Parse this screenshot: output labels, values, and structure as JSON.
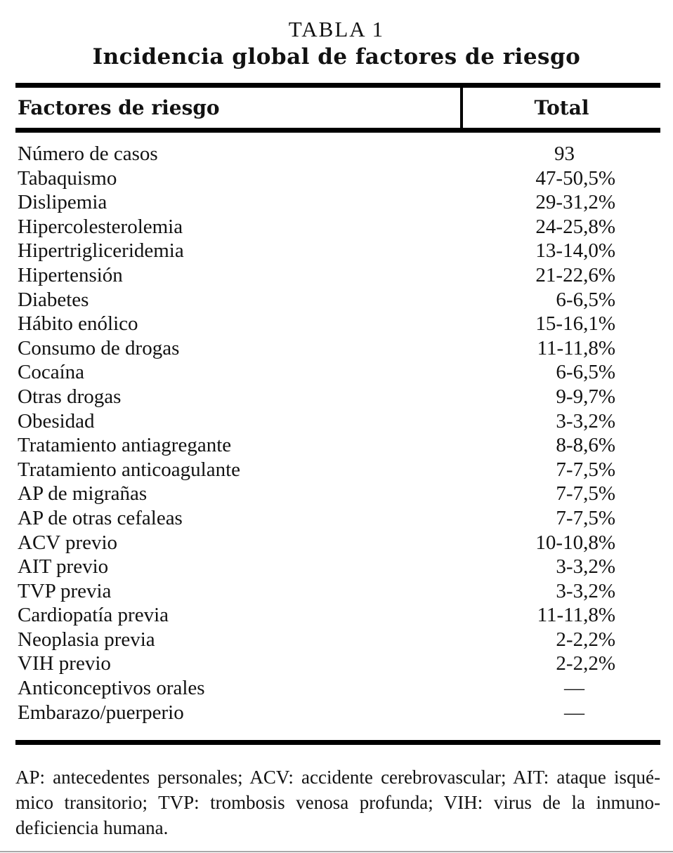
{
  "table_number": "TABLA 1",
  "table_title": "Incidencia global de factores de riesgo",
  "columns": {
    "factor": "Factores de riesgo",
    "total": "Total"
  },
  "rows": [
    {
      "label": "Número de casos",
      "value": "93"
    },
    {
      "label": "Tabaquismo",
      "value": "47-50,5%"
    },
    {
      "label": "Dislipemia",
      "value": "29-31,2%"
    },
    {
      "label": "Hipercolesterolemia",
      "value": "24-25,8%"
    },
    {
      "label": "Hipertrigliceridemia",
      "value": "13-14,0%"
    },
    {
      "label": "Hipertensión",
      "value": "21-22,6%"
    },
    {
      "label": "Diabetes",
      "value": "6-6,5%"
    },
    {
      "label": "Hábito enólico",
      "value": "15-16,1%"
    },
    {
      "label": "Consumo de drogas",
      "value": "11-11,8%"
    },
    {
      "label": "Cocaína",
      "value": "6-6,5%"
    },
    {
      "label": "Otras drogas",
      "value": "9-9,7%"
    },
    {
      "label": "Obesidad",
      "value": "3-3,2%"
    },
    {
      "label": "Tratamiento antiagregante",
      "value": "8-8,6%"
    },
    {
      "label": "Tratamiento anticoagulante",
      "value": "7-7,5%"
    },
    {
      "label": "AP de migrañas",
      "value": "7-7,5%"
    },
    {
      "label": "AP de otras cefaleas",
      "value": "7-7,5%"
    },
    {
      "label": "ACV previo",
      "value": "10-10,8%"
    },
    {
      "label": "AIT previo",
      "value": "3-3,2%"
    },
    {
      "label": "TVP previa",
      "value": "3-3,2%"
    },
    {
      "label": "Cardiopatía previa",
      "value": "11-11,8%"
    },
    {
      "label": "Neoplasia previa",
      "value": "2-2,2%"
    },
    {
      "label": "VIH previo",
      "value": "2-2,2%"
    },
    {
      "label": "Anticonceptivos orales",
      "value": "—"
    },
    {
      "label": "Embarazo/puerperio",
      "value": "—"
    }
  ],
  "footnote_lines": [
    "AP: antecedentes personales; ACV: accidente cerebrovascular; AIT: ataque isqué-",
    "mico transitorio; TVP: trombosis venosa profunda; VIH: virus de la inmuno-",
    "deficiencia humana."
  ],
  "colors": {
    "text": "#121212",
    "rule": "#000000",
    "page_background": "#ffffff",
    "bottom_edge_line": "#a8a8a8"
  }
}
